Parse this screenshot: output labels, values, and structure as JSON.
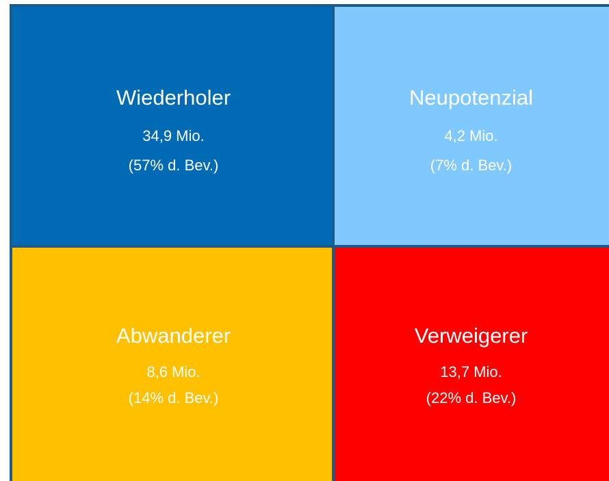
{
  "quadrants": [
    {
      "label": "Wiederholer",
      "value": "34,9 Mio.",
      "share": "(57% d. Bev.)",
      "color": "#006ab4"
    },
    {
      "label": "Neupotenzial",
      "value": "4,2 Mio.",
      "share": "(7% d. Bev.)",
      "color": "#7fc9ff"
    },
    {
      "label": "Abwanderer",
      "value": "8,6 Mio.",
      "share": "(14% d. Bev.)",
      "color": "#ffc000"
    },
    {
      "label": "Verweigerer",
      "value": "13,7 Mio.",
      "share": "(22% d. Bev.)",
      "color": "#ff0000"
    }
  ]
}
